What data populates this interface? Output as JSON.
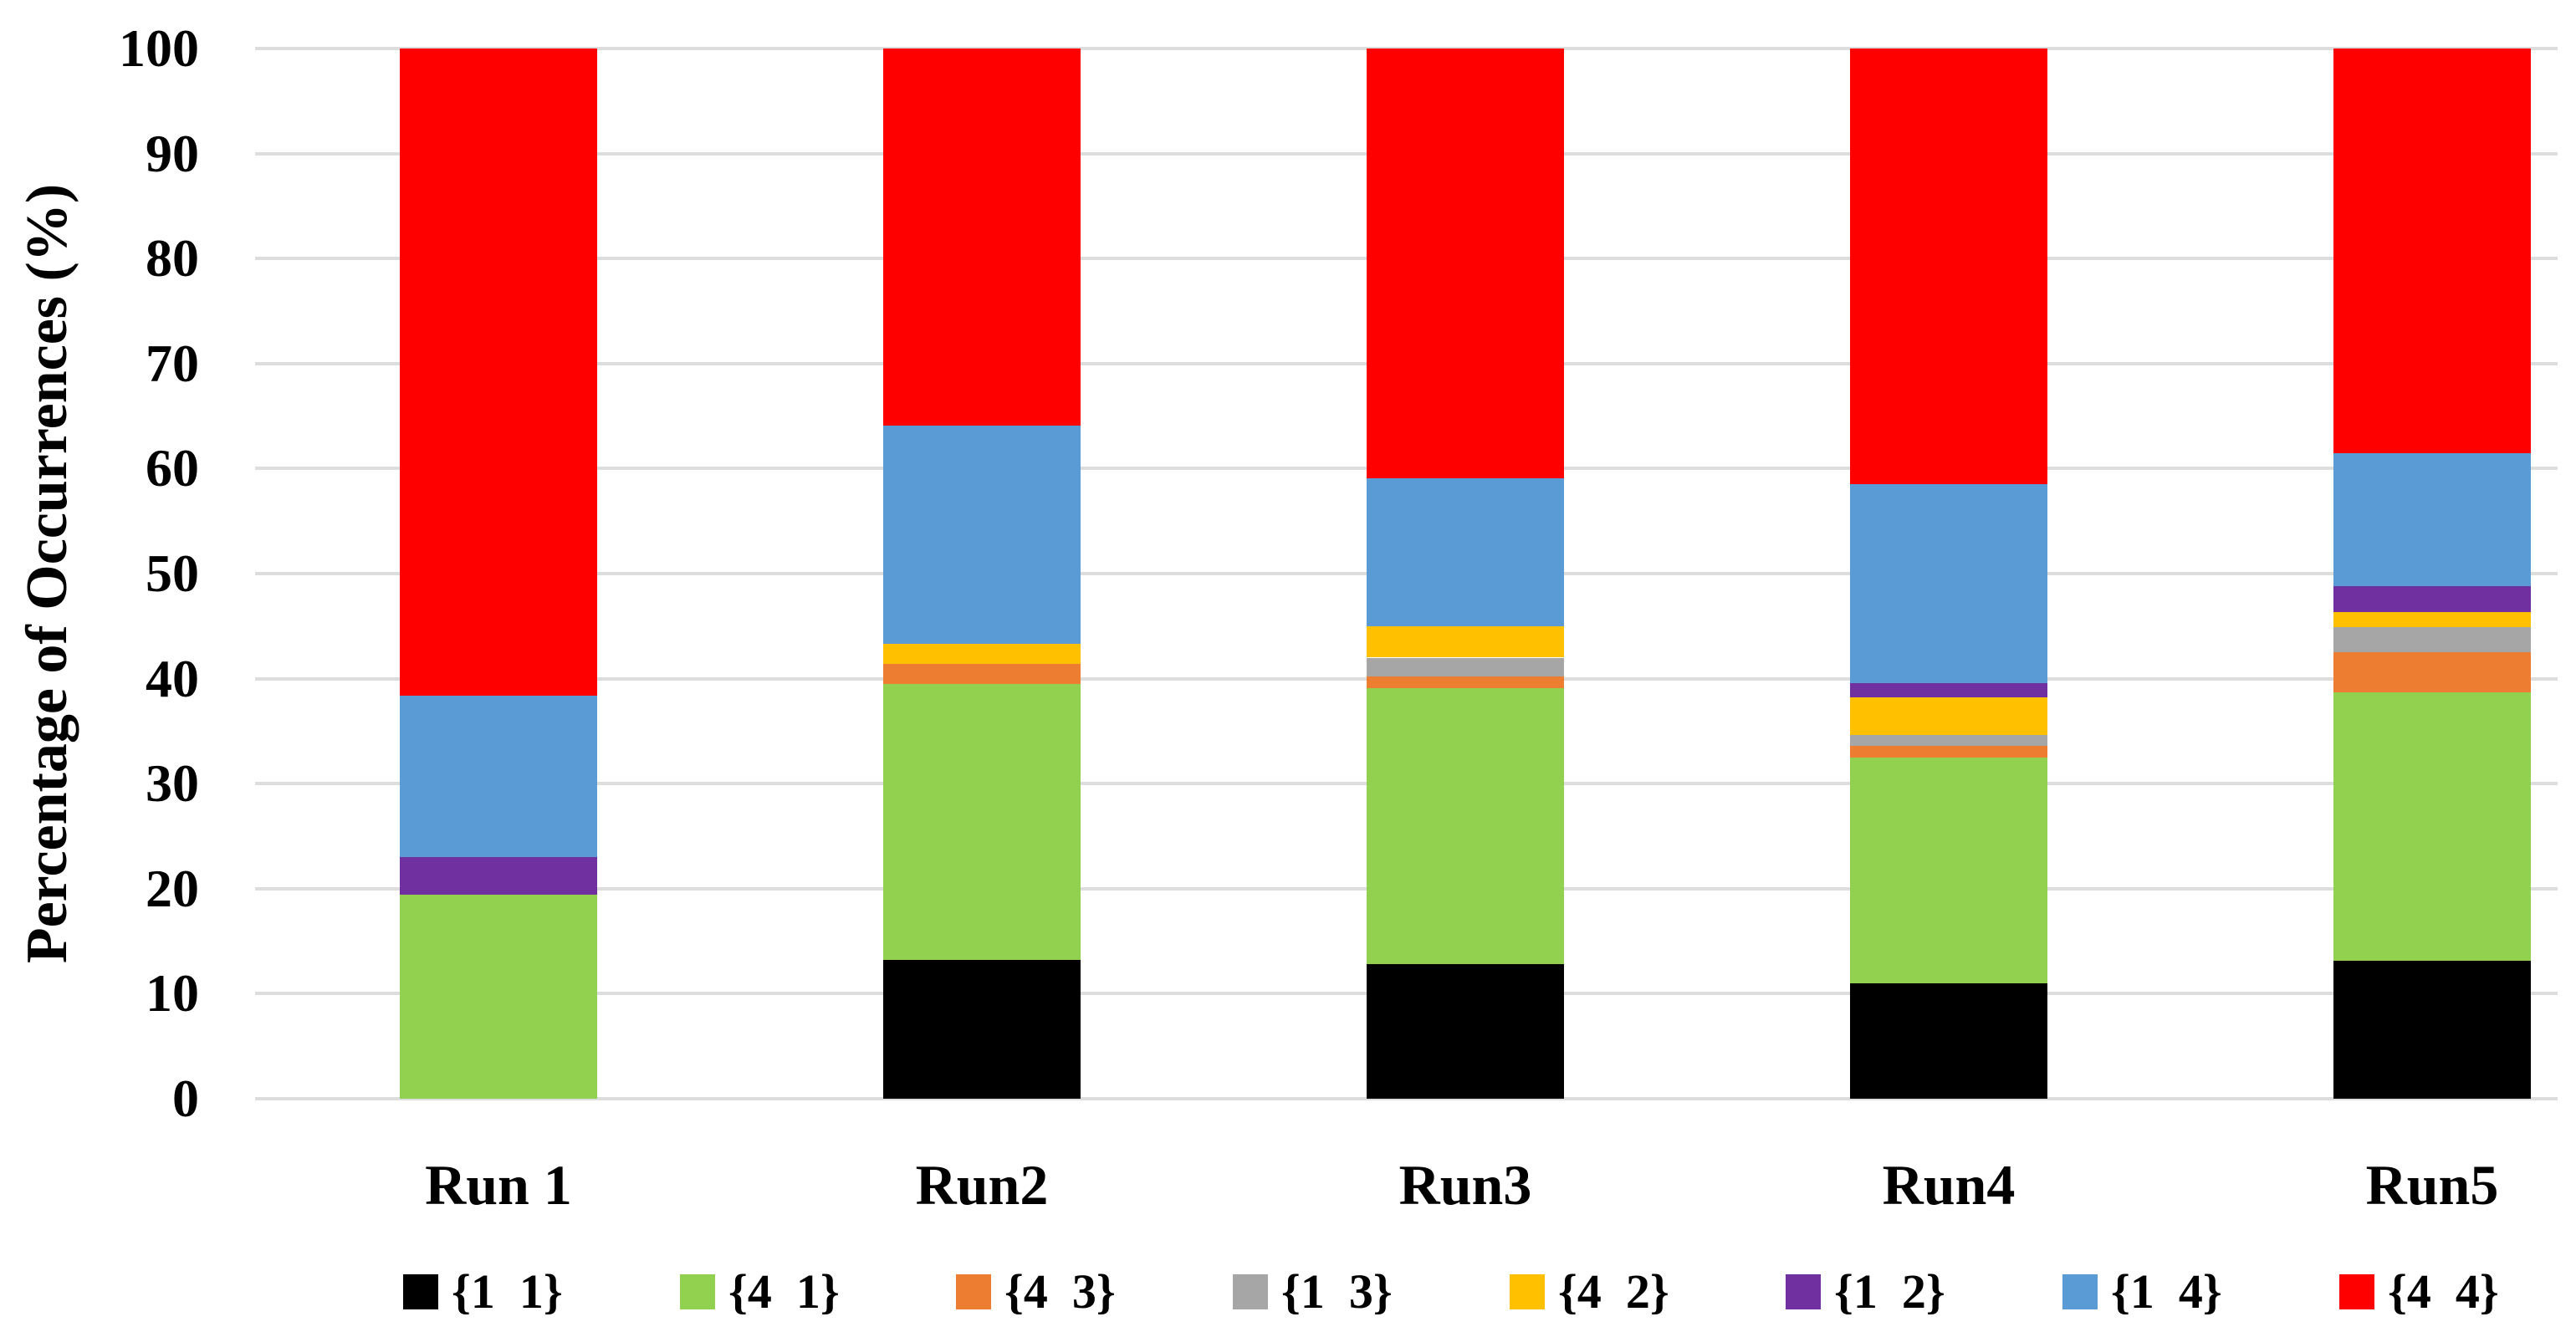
{
  "chart_data": {
    "type": "bar",
    "stacked": true,
    "title": "",
    "xlabel": "",
    "ylabel": "Percentage of Occurrences (%)",
    "ylim": [
      0,
      100
    ],
    "ytick_step": 10,
    "yticks": [
      0,
      10,
      20,
      30,
      40,
      50,
      60,
      70,
      80,
      90,
      100
    ],
    "grid": true,
    "gridline_color": "#dddddd",
    "legend_position": "bottom",
    "categories": [
      "Run 1",
      "Run2",
      "Run3",
      "Run4",
      "Run5"
    ],
    "series": [
      {
        "name": "{1  1}",
        "color": "#000000",
        "values": [
          0,
          13.2,
          12.8,
          11.0,
          13.1
        ]
      },
      {
        "name": "{4  1}",
        "color": "#92D050",
        "values": [
          19.4,
          26.3,
          26.3,
          21.5,
          25.6
        ]
      },
      {
        "name": "{4  3}",
        "color": "#ED7D31",
        "values": [
          0,
          1.9,
          1.1,
          1.1,
          3.8
        ]
      },
      {
        "name": "{1  3}",
        "color": "#A6A6A6",
        "values": [
          0,
          0,
          1.8,
          1.0,
          2.4
        ]
      },
      {
        "name": "{4  2}",
        "color": "#FFC000",
        "values": [
          0,
          1.9,
          3.0,
          3.6,
          1.4
        ]
      },
      {
        "name": "{1  2}",
        "color": "#7030A0",
        "values": [
          3.6,
          0,
          0,
          1.4,
          2.5
        ]
      },
      {
        "name": "{1  4}",
        "color": "#5B9BD5",
        "values": [
          15.4,
          20.8,
          14.1,
          18.9,
          12.7
        ]
      },
      {
        "name": "{4  4}",
        "color": "#FF0000",
        "values": [
          61.6,
          35.9,
          40.9,
          41.5,
          38.5
        ]
      }
    ]
  }
}
